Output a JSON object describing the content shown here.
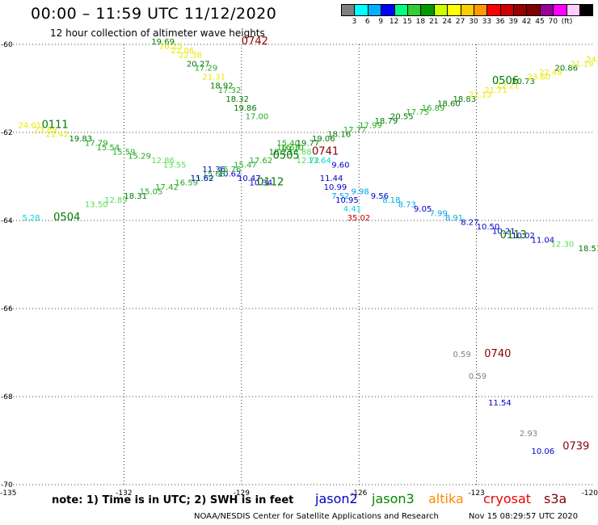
{
  "header": {
    "title": "00:00 – 11:59 UTC 11/12/2020",
    "subtitle": "12 hour collection of altimeter wave heights"
  },
  "color_scale": {
    "swatches": [
      "#808080",
      "#00ffff",
      "#00b0ff",
      "#0000ff",
      "#00ff80",
      "#33cc33",
      "#009900",
      "#ccff00",
      "#ffff00",
      "#ffcc00",
      "#ff9900",
      "#ff0000",
      "#cc0000",
      "#990000",
      "#800000",
      "#990099",
      "#ff00ff",
      "#ffccff",
      "#000000"
    ],
    "labels": [
      "3",
      "6",
      "9",
      "12",
      "15",
      "18",
      "21",
      "24",
      "27",
      "30",
      "33",
      "36",
      "39",
      "42",
      "45",
      "70"
    ],
    "unit": "(ft)"
  },
  "footer": {
    "note": "note: 1) Time is in UTC; 2) SWH is in feet",
    "credit": "NOAA/NESDIS Center for Satellite Applications and Research",
    "timestamp": "Nov 15 08:29:57 UTC 2020"
  },
  "legend": [
    {
      "name": "jason2",
      "color": "#0000cc"
    },
    {
      "name": "jason3",
      "color": "#008800"
    },
    {
      "name": "altika",
      "color": "#ff8800"
    },
    {
      "name": "cryosat",
      "color": "#ee0000"
    },
    {
      "name": "s3a",
      "color": "#880000"
    }
  ],
  "chart_data": {
    "type": "scatter",
    "title": "12 hour collection of altimeter wave heights",
    "xlabel": "",
    "ylabel": "",
    "xlim": [
      -135,
      -120
    ],
    "ylim": [
      -70,
      -60
    ],
    "grid": true,
    "x_ticks": [
      "-135",
      "-132",
      "-129",
      "-126",
      "-123",
      "-120"
    ],
    "x_tick_values": [
      -135,
      -132,
      -129,
      -126,
      -123,
      -120
    ],
    "y_ticks": [
      "-60",
      "-62",
      "-64",
      "-66",
      "-68",
      "-70"
    ],
    "y_tick_values": [
      -60,
      -62,
      -64,
      -66,
      -68,
      -70
    ],
    "color_key": {
      "gray": "#808080",
      "cyan": "#00d8d8",
      "lblue": "#00a8e8",
      "blue": "#0000cc",
      "lgreen": "#55dd55",
      "mgreen": "#22aa22",
      "dgreen": "#007700",
      "yellow": "#e8e800",
      "lyellow": "#cccc00",
      "dred": "#880000",
      "red": "#cc0000"
    },
    "time_labels": [
      {
        "text": "0742",
        "x": -129.0,
        "y": -60.0,
        "color": "dred"
      },
      {
        "text": "0111",
        "x": -134.1,
        "y": -61.9,
        "color": "dgreen"
      },
      {
        "text": "0741",
        "x": -127.2,
        "y": -62.5,
        "color": "dred"
      },
      {
        "text": "0505",
        "x": -128.2,
        "y": -62.6,
        "color": "dgreen"
      },
      {
        "text": "0112",
        "x": -128.6,
        "y": -63.2,
        "color": "dgreen"
      },
      {
        "text": "0504",
        "x": -133.8,
        "y": -64.0,
        "color": "dgreen"
      },
      {
        "text": "0506",
        "x": -122.6,
        "y": -60.9,
        "color": "dgreen"
      },
      {
        "text": "0113",
        "x": -122.4,
        "y": -64.4,
        "color": "dgreen"
      },
      {
        "text": "0740",
        "x": -122.8,
        "y": -67.1,
        "color": "dred"
      },
      {
        "text": "0739",
        "x": -120.8,
        "y": -69.2,
        "color": "dred"
      }
    ],
    "points": [
      {
        "v": "19.69",
        "x": -131.3,
        "y": -60.0,
        "c": "dgreen"
      },
      {
        "v": "26.23",
        "x": -131.1,
        "y": -60.1,
        "c": "yellow"
      },
      {
        "v": "22.06",
        "x": -130.8,
        "y": -60.2,
        "c": "yellow"
      },
      {
        "v": "22.38",
        "x": -130.6,
        "y": -60.3,
        "c": "yellow"
      },
      {
        "v": "20.27",
        "x": -130.4,
        "y": -60.5,
        "c": "dgreen"
      },
      {
        "v": "17.29",
        "x": -130.2,
        "y": -60.6,
        "c": "mgreen"
      },
      {
        "v": "21.31",
        "x": -130.0,
        "y": -60.8,
        "c": "yellow"
      },
      {
        "v": "18.92",
        "x": -129.8,
        "y": -61.0,
        "c": "dgreen"
      },
      {
        "v": "17.32",
        "x": -129.6,
        "y": -61.1,
        "c": "mgreen"
      },
      {
        "v": "18.32",
        "x": -129.4,
        "y": -61.3,
        "c": "dgreen"
      },
      {
        "v": "19.86",
        "x": -129.2,
        "y": -61.5,
        "c": "dgreen"
      },
      {
        "v": "17.00",
        "x": -128.9,
        "y": -61.7,
        "c": "mgreen"
      },
      {
        "v": "15.40",
        "x": -128.1,
        "y": -62.3,
        "c": "mgreen"
      },
      {
        "v": "16.63",
        "x": -128.1,
        "y": -62.4,
        "c": "mgreen"
      },
      {
        "v": "14.88",
        "x": -127.8,
        "y": -62.5,
        "c": "lgreen"
      },
      {
        "v": "12.72",
        "x": -127.6,
        "y": -62.7,
        "c": "lgreen"
      },
      {
        "v": "13.64",
        "x": -127.3,
        "y": -62.7,
        "c": "cyan"
      },
      {
        "v": "9.60",
        "x": -126.7,
        "y": -62.8,
        "c": "blue"
      },
      {
        "v": "11.44",
        "x": -127.0,
        "y": -63.1,
        "c": "blue"
      },
      {
        "v": "10.99",
        "x": -126.9,
        "y": -63.3,
        "c": "blue"
      },
      {
        "v": "7.52",
        "x": -126.7,
        "y": -63.5,
        "c": "lblue"
      },
      {
        "v": "10.95",
        "x": -126.6,
        "y": -63.6,
        "c": "blue"
      },
      {
        "v": "4.41",
        "x": -126.4,
        "y": -63.8,
        "c": "cyan"
      },
      {
        "v": "35.02",
        "x": -126.3,
        "y": -64.0,
        "c": "red"
      },
      {
        "v": "24.01",
        "x": -134.7,
        "y": -61.9,
        "c": "yellow"
      },
      {
        "v": "23.89",
        "x": -134.3,
        "y": -62.0,
        "c": "yellow"
      },
      {
        "v": "22.42",
        "x": -134.0,
        "y": -62.1,
        "c": "yellow"
      },
      {
        "v": "19.83",
        "x": -133.4,
        "y": -62.2,
        "c": "dgreen"
      },
      {
        "v": "17.79",
        "x": -133.0,
        "y": -62.3,
        "c": "mgreen"
      },
      {
        "v": "15.54",
        "x": -132.7,
        "y": -62.4,
        "c": "mgreen"
      },
      {
        "v": "15.59",
        "x": -132.3,
        "y": -62.5,
        "c": "mgreen"
      },
      {
        "v": "15.29",
        "x": -131.9,
        "y": -62.6,
        "c": "mgreen"
      },
      {
        "v": "12.86",
        "x": -131.3,
        "y": -62.7,
        "c": "lgreen"
      },
      {
        "v": "13.55",
        "x": -131.0,
        "y": -62.8,
        "c": "lgreen"
      },
      {
        "v": "11.36",
        "x": -130.0,
        "y": -62.9,
        "c": "blue"
      },
      {
        "v": "10.62",
        "x": -129.6,
        "y": -63.0,
        "c": "blue"
      },
      {
        "v": "10.47",
        "x": -129.1,
        "y": -63.1,
        "c": "blue"
      },
      {
        "v": "10.34",
        "x": -128.8,
        "y": -63.2,
        "c": "blue"
      },
      {
        "v": "9.98",
        "x": -126.2,
        "y": -63.4,
        "c": "lblue"
      },
      {
        "v": "9.56",
        "x": -125.7,
        "y": -63.5,
        "c": "blue"
      },
      {
        "v": "8.18",
        "x": -125.4,
        "y": -63.6,
        "c": "lblue"
      },
      {
        "v": "8.73",
        "x": -125.0,
        "y": -63.7,
        "c": "lblue"
      },
      {
        "v": "9.05",
        "x": -124.6,
        "y": -63.8,
        "c": "blue"
      },
      {
        "v": "7.99",
        "x": -124.2,
        "y": -63.9,
        "c": "lblue"
      },
      {
        "v": "8.91",
        "x": -123.8,
        "y": -64.0,
        "c": "lblue"
      },
      {
        "v": "8.27",
        "x": -123.4,
        "y": -64.1,
        "c": "blue"
      },
      {
        "v": "10.50",
        "x": -123.0,
        "y": -64.2,
        "c": "blue"
      },
      {
        "v": "10.21",
        "x": -122.6,
        "y": -64.3,
        "c": "blue"
      },
      {
        "v": "10.02",
        "x": -122.1,
        "y": -64.4,
        "c": "blue"
      },
      {
        "v": "11.04",
        "x": -121.6,
        "y": -64.5,
        "c": "blue"
      },
      {
        "v": "12.30",
        "x": -121.1,
        "y": -64.6,
        "c": "lgreen"
      },
      {
        "v": "18.51",
        "x": -120.4,
        "y": -64.7,
        "c": "dgreen"
      },
      {
        "v": "5.28",
        "x": -134.6,
        "y": -64.0,
        "c": "cyan"
      },
      {
        "v": "13.50",
        "x": -133.0,
        "y": -63.7,
        "c": "lgreen"
      },
      {
        "v": "12.89",
        "x": -132.5,
        "y": -63.6,
        "c": "lgreen"
      },
      {
        "v": "18.31",
        "x": -132.0,
        "y": -63.5,
        "c": "dgreen"
      },
      {
        "v": "15.05",
        "x": -131.6,
        "y": -63.4,
        "c": "mgreen"
      },
      {
        "v": "17.42",
        "x": -131.2,
        "y": -63.3,
        "c": "mgreen"
      },
      {
        "v": "16.59",
        "x": -130.7,
        "y": -63.2,
        "c": "mgreen"
      },
      {
        "v": "15.89",
        "x": -130.3,
        "y": -63.1,
        "c": "lgreen"
      },
      {
        "v": "15.68",
        "x": -130.0,
        "y": -63.0,
        "c": "mgreen"
      },
      {
        "v": "16.76",
        "x": -129.6,
        "y": -62.9,
        "c": "mgreen"
      },
      {
        "v": "15.47",
        "x": -129.2,
        "y": -62.8,
        "c": "mgreen"
      },
      {
        "v": "17.62",
        "x": -128.8,
        "y": -62.7,
        "c": "mgreen"
      },
      {
        "v": "18.23",
        "x": -128.3,
        "y": -62.5,
        "c": "dgreen"
      },
      {
        "v": "16.10",
        "x": -128.0,
        "y": -62.4,
        "c": "mgreen"
      },
      {
        "v": "19.77",
        "x": -127.6,
        "y": -62.3,
        "c": "dgreen"
      },
      {
        "v": "19.06",
        "x": -127.2,
        "y": -62.2,
        "c": "dgreen"
      },
      {
        "v": "18.16",
        "x": -126.8,
        "y": -62.1,
        "c": "dgreen"
      },
      {
        "v": "17.77",
        "x": -126.4,
        "y": -62.0,
        "c": "mgreen"
      },
      {
        "v": "17.99",
        "x": -126.0,
        "y": -61.9,
        "c": "mgreen"
      },
      {
        "v": "18.79",
        "x": -125.6,
        "y": -61.8,
        "c": "dgreen"
      },
      {
        "v": "20.55",
        "x": -125.2,
        "y": -61.7,
        "c": "dgreen"
      },
      {
        "v": "17.75",
        "x": -124.8,
        "y": -61.6,
        "c": "mgreen"
      },
      {
        "v": "16.89",
        "x": -124.4,
        "y": -61.5,
        "c": "mgreen"
      },
      {
        "v": "18.60",
        "x": -124.0,
        "y": -61.4,
        "c": "dgreen"
      },
      {
        "v": "18.83",
        "x": -123.6,
        "y": -61.3,
        "c": "dgreen"
      },
      {
        "v": "22.13",
        "x": -123.2,
        "y": -61.2,
        "c": "yellow"
      },
      {
        "v": "21.71",
        "x": -122.8,
        "y": -61.1,
        "c": "yellow"
      },
      {
        "v": "22.21",
        "x": -122.5,
        "y": -61.0,
        "c": "yellow"
      },
      {
        "v": "20.73",
        "x": -122.1,
        "y": -60.9,
        "c": "dgreen"
      },
      {
        "v": "23.60",
        "x": -121.7,
        "y": -60.8,
        "c": "yellow"
      },
      {
        "v": "22.48",
        "x": -121.4,
        "y": -60.7,
        "c": "yellow"
      },
      {
        "v": "20.86",
        "x": -121.0,
        "y": -60.6,
        "c": "dgreen"
      },
      {
        "v": "21.19",
        "x": -120.6,
        "y": -60.5,
        "c": "yellow"
      },
      {
        "v": "24.32",
        "x": -120.2,
        "y": -60.4,
        "c": "yellow"
      },
      {
        "v": "22.37",
        "x": -119.8,
        "y": -60.3,
        "c": "yellow"
      },
      {
        "v": "11.62",
        "x": -130.3,
        "y": -63.1,
        "c": "blue"
      },
      {
        "v": "0.59",
        "x": -123.6,
        "y": -67.1,
        "c": "gray"
      },
      {
        "v": "0.59",
        "x": -123.2,
        "y": -67.6,
        "c": "gray"
      },
      {
        "v": "11.54",
        "x": -122.7,
        "y": -68.2,
        "c": "blue"
      },
      {
        "v": "2.93",
        "x": -121.9,
        "y": -68.9,
        "c": "gray"
      },
      {
        "v": "10.06",
        "x": -121.6,
        "y": -69.3,
        "c": "blue"
      }
    ]
  }
}
